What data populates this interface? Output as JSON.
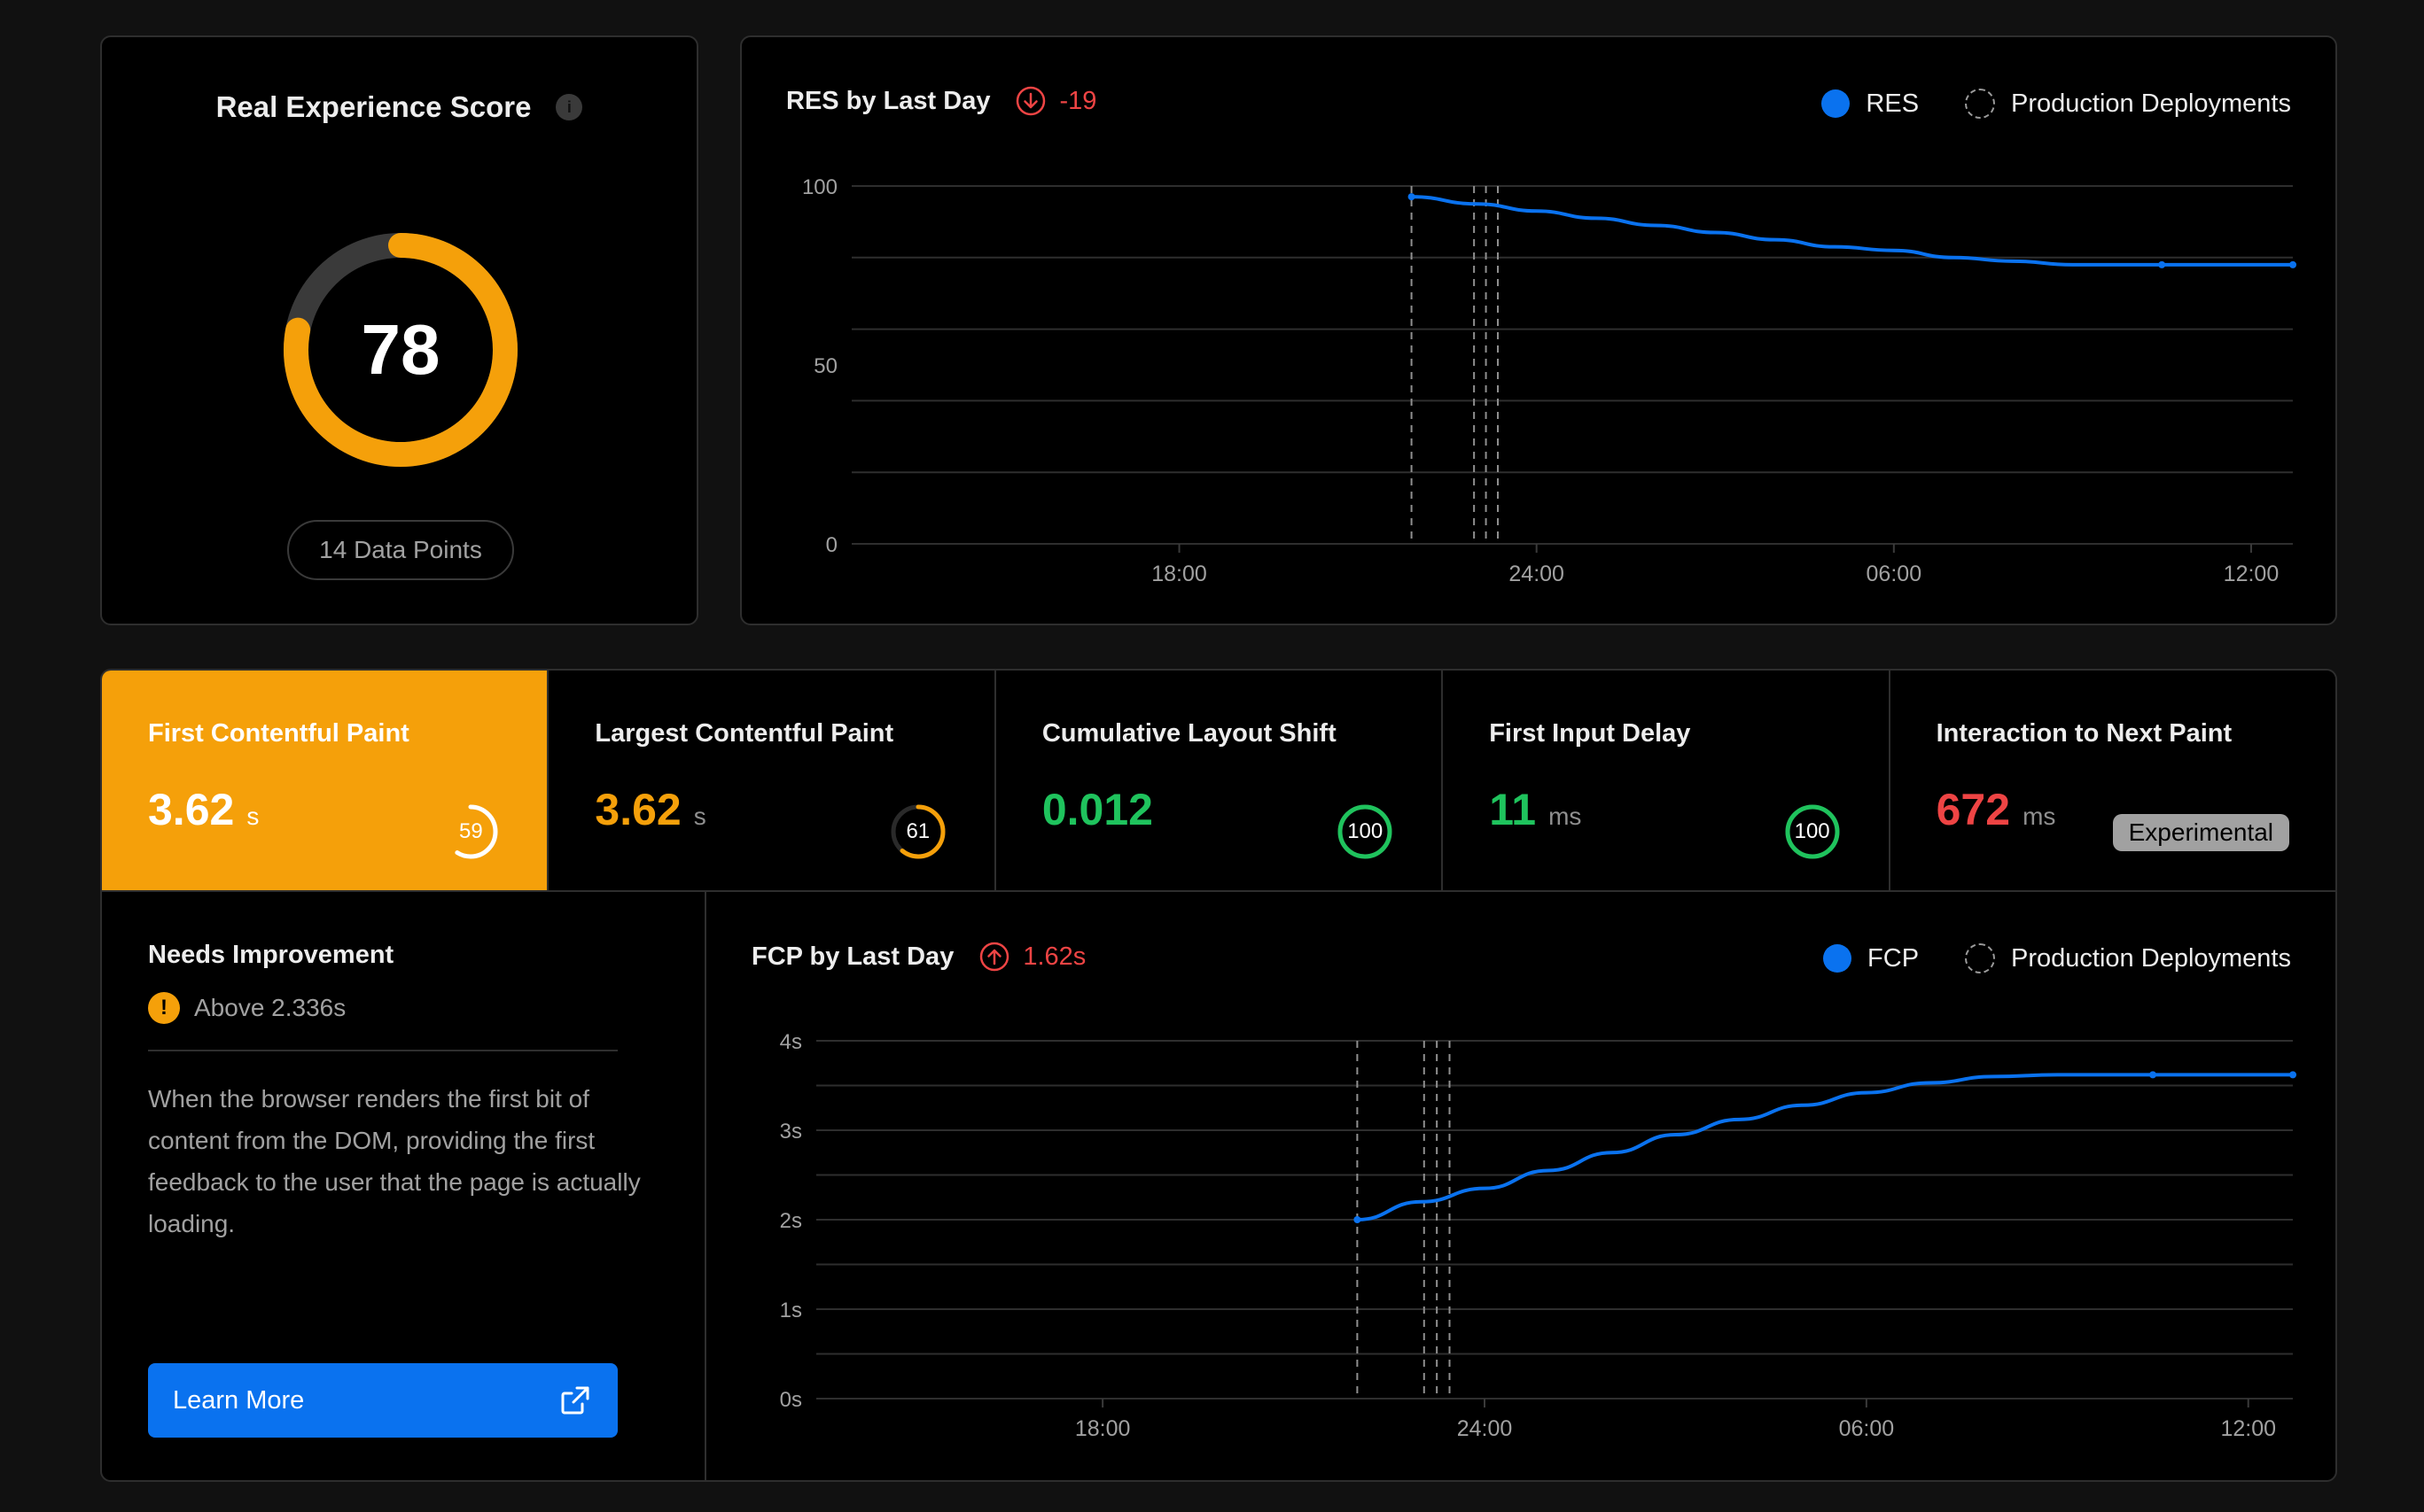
{
  "score_card": {
    "title": "Real Experience Score",
    "info_glyph": "i",
    "score": "78",
    "score_fraction": 0.78,
    "data_points": "14 Data Points",
    "colors": {
      "accent": "#f5a00a",
      "track": "#3a3a3a"
    }
  },
  "res_chart": {
    "title": "RES by Last Day",
    "delta": "-19",
    "delta_direction": "down",
    "legend": {
      "series": "RES",
      "deployments": "Production Deployments"
    }
  },
  "metrics": [
    {
      "label": "First Contentful Paint",
      "value": "3.62",
      "unit": "s",
      "score": "59",
      "score_fraction": 0.59,
      "color": "#f5a00a",
      "active": true
    },
    {
      "label": "Largest Contentful Paint",
      "value": "3.62",
      "unit": "s",
      "score": "61",
      "score_fraction": 0.61,
      "color": "#f5a00a",
      "active": false
    },
    {
      "label": "Cumulative Layout Shift",
      "value": "0.012",
      "unit": "",
      "score": "100",
      "score_fraction": 1.0,
      "color": "#1fc35d",
      "active": false
    },
    {
      "label": "First Input Delay",
      "value": "11",
      "unit": "ms",
      "score": "100",
      "score_fraction": 1.0,
      "color": "#1fc35d",
      "active": false
    },
    {
      "label": "Interaction to Next Paint",
      "value": "672",
      "unit": "ms",
      "badge": "Experimental",
      "color": "#ee4444",
      "active": false
    }
  ],
  "detail": {
    "title": "Needs Improvement",
    "warn_glyph": "!",
    "threshold": "Above 2.336s",
    "description": "When the browser renders the first bit of content from the DOM, providing the first feedback to the user that the page is actually loading.",
    "button_label": "Learn More"
  },
  "fcp_chart": {
    "title": "FCP by Last Day",
    "delta": "1.62s",
    "delta_direction": "up",
    "legend": {
      "series": "FCP",
      "deployments": "Production Deployments"
    }
  },
  "chart_data": [
    {
      "type": "line",
      "title": "RES by Last Day",
      "x_ticks": [
        "18:00",
        "24:00",
        "06:00",
        "12:00"
      ],
      "x_tick_hours": [
        18,
        24,
        30,
        36
      ],
      "xlim_hours": [
        12.5,
        36.7
      ],
      "y_ticks": [
        "0",
        "50",
        "100"
      ],
      "y_tick_values": [
        0,
        50,
        100
      ],
      "ylim": [
        0,
        100
      ],
      "grid": true,
      "legend_position": "top-right",
      "series": [
        {
          "name": "RES",
          "color": "#0a72ef",
          "x_hours": [
            21.9,
            23.0,
            24.0,
            25.0,
            26.0,
            27.0,
            28.0,
            29.0,
            30.0,
            31.0,
            32.0,
            33.0,
            34.5,
            36.7
          ],
          "values": [
            97,
            95,
            93,
            91,
            89,
            87,
            85,
            83,
            82,
            80,
            79,
            78,
            78,
            78
          ]
        }
      ],
      "deployments_hours": [
        21.9,
        22.95,
        23.15,
        23.35
      ]
    },
    {
      "type": "line",
      "title": "FCP by Last Day",
      "x_ticks": [
        "18:00",
        "24:00",
        "06:00",
        "12:00"
      ],
      "x_tick_hours": [
        18,
        24,
        30,
        36
      ],
      "xlim_hours": [
        13.5,
        36.7
      ],
      "y_ticks": [
        "0s",
        "1s",
        "2s",
        "3s",
        "4s"
      ],
      "y_tick_values": [
        0,
        1,
        2,
        3,
        4
      ],
      "ylim": [
        0,
        4
      ],
      "grid": true,
      "legend_position": "top-right",
      "series": [
        {
          "name": "FCP",
          "color": "#0a72ef",
          "x_hours": [
            22.0,
            23.0,
            24.0,
            25.0,
            26.0,
            27.0,
            28.0,
            29.0,
            30.0,
            31.0,
            32.0,
            33.0,
            34.5,
            36.7
          ],
          "values": [
            2.0,
            2.2,
            2.35,
            2.55,
            2.75,
            2.95,
            3.12,
            3.28,
            3.42,
            3.53,
            3.6,
            3.62,
            3.62,
            3.62
          ]
        }
      ],
      "deployments_hours": [
        22.0,
        23.05,
        23.25,
        23.45
      ]
    }
  ]
}
